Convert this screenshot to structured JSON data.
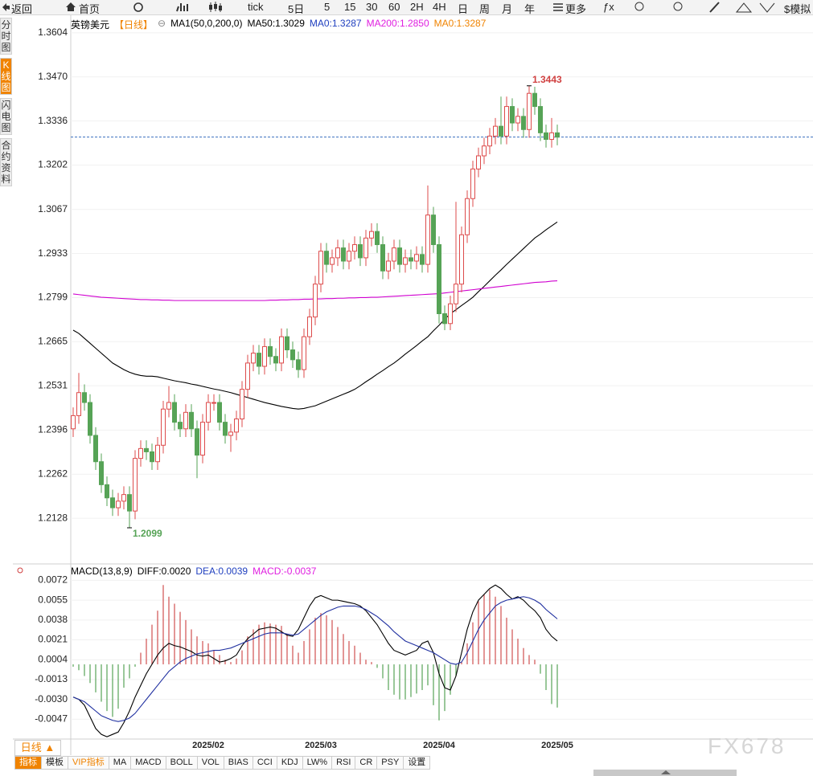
{
  "toolbar": {
    "items": [
      "返回",
      "首页",
      "tick",
      "5日",
      "5",
      "15",
      "30",
      "60",
      "2H",
      "4H",
      "日",
      "周",
      "月",
      "年",
      "更多",
      "ƒx",
      "$模拟"
    ]
  },
  "sidebar": {
    "tabs": [
      "分时图",
      "K线图",
      "闪电图",
      "合约资料"
    ],
    "active": 1
  },
  "bottom": {
    "period": "日线 ▲",
    "tabs": [
      "指标",
      "模板",
      "VIP指标",
      "MA",
      "MACD",
      "BOLL",
      "VOL",
      "BIAS",
      "CCI",
      "KDJ",
      "LW%",
      "RSI",
      "CR",
      "PSY",
      "设置"
    ]
  },
  "watermark": "FX678",
  "chart_data": [
    {
      "type": "candlestick",
      "title": "英镑美元",
      "legend": [
        {
          "text": "【日线】",
          "color": "#f08300"
        },
        {
          "text": "⊖",
          "color": "#888888"
        },
        {
          "text": "MA1(50,0,200,0)",
          "color": "#000000"
        },
        {
          "text": "MA50:1.3029",
          "color": "#000000"
        },
        {
          "text": "MA0:1.3287",
          "color": "#1f3fbf"
        },
        {
          "text": "MA200:1.2850",
          "color": "#e020e0"
        },
        {
          "text": "MA0:1.3287",
          "color": "#f08300"
        }
      ],
      "open": [
        1.24,
        1.244,
        1.251,
        1.248,
        1.238,
        1.23,
        1.223,
        1.219,
        1.216,
        1.218,
        1.22,
        1.215,
        1.231,
        1.234,
        1.233,
        1.23,
        1.235,
        1.246,
        1.248,
        1.242,
        1.24,
        1.245,
        1.24,
        1.232,
        1.242,
        1.248,
        1.248,
        1.242,
        1.238,
        1.239,
        1.243,
        1.252,
        1.26,
        1.263,
        1.259,
        1.265,
        1.262,
        1.26,
        1.268,
        1.264,
        1.261,
        1.258,
        1.268,
        1.274,
        1.284,
        1.294,
        1.29,
        1.292,
        1.295,
        1.291,
        1.294,
        1.296,
        1.292,
        1.298,
        1.3,
        1.296,
        1.288,
        1.291,
        1.295,
        1.29,
        1.292,
        1.291,
        1.293,
        1.29,
        1.305,
        1.296,
        1.275,
        1.272,
        1.278,
        1.284,
        1.299,
        1.31,
        1.319,
        1.323,
        1.326,
        1.329,
        1.332,
        1.329,
        1.338,
        1.333,
        1.335,
        1.331,
        1.342,
        1.338,
        1.33,
        1.328,
        1.33
      ],
      "high": [
        1.2465,
        1.257,
        1.2535,
        1.2505,
        1.2405,
        1.2325,
        1.2255,
        1.2215,
        1.2205,
        1.2225,
        1.2225,
        1.2335,
        1.2365,
        1.2365,
        1.2355,
        1.2375,
        1.2485,
        1.253,
        1.2505,
        1.2445,
        1.2475,
        1.2475,
        1.2425,
        1.2445,
        1.2505,
        1.2505,
        1.2505,
        1.2445,
        1.2415,
        1.2455,
        1.2545,
        1.2625,
        1.2655,
        1.2655,
        1.2675,
        1.2675,
        1.2645,
        1.2705,
        1.2705,
        1.2665,
        1.2635,
        1.2705,
        1.2765,
        1.2865,
        1.2965,
        1.2965,
        1.2945,
        1.2975,
        1.2975,
        1.2965,
        1.2985,
        1.2985,
        1.3005,
        1.3025,
        1.3025,
        1.2985,
        1.2935,
        1.2975,
        1.2975,
        1.2945,
        1.2945,
        1.2955,
        1.2955,
        1.314,
        1.3075,
        1.2985,
        1.2775,
        1.2805,
        1.309,
        1.3015,
        1.3125,
        1.3215,
        1.3255,
        1.3285,
        1.3315,
        1.3345,
        1.341,
        1.341,
        1.3405,
        1.3375,
        1.3375,
        1.3443,
        1.344,
        1.3405,
        1.3325,
        1.3345,
        1.3325
      ],
      "low": [
        1.2375,
        1.2415,
        1.2455,
        1.2355,
        1.2275,
        1.2205,
        1.2165,
        1.2135,
        1.2135,
        1.2155,
        1.2099,
        1.2125,
        1.2285,
        1.2305,
        1.2275,
        1.2275,
        1.2325,
        1.2435,
        1.2395,
        1.2375,
        1.2375,
        1.2375,
        1.225,
        1.2295,
        1.2395,
        1.2455,
        1.2395,
        1.2355,
        1.233,
        1.2365,
        1.2405,
        1.2495,
        1.2575,
        1.2565,
        1.2565,
        1.2595,
        1.2575,
        1.2575,
        1.2615,
        1.2585,
        1.2555,
        1.2555,
        1.2655,
        1.2715,
        1.2815,
        1.2875,
        1.2875,
        1.2895,
        1.2885,
        1.2885,
        1.2915,
        1.2895,
        1.2895,
        1.2955,
        1.2935,
        1.2855,
        1.2855,
        1.2885,
        1.2875,
        1.2875,
        1.2885,
        1.2885,
        1.2875,
        1.2875,
        1.2935,
        1.272,
        1.27,
        1.27,
        1.2755,
        1.2815,
        1.2965,
        1.3075,
        1.3165,
        1.3205,
        1.3235,
        1.3265,
        1.3265,
        1.3265,
        1.3305,
        1.3305,
        1.3285,
        1.3285,
        1.3355,
        1.3275,
        1.3255,
        1.3255,
        1.3262
      ],
      "close": [
        1.244,
        1.251,
        1.248,
        1.238,
        1.23,
        1.223,
        1.219,
        1.216,
        1.218,
        1.22,
        1.215,
        1.231,
        1.234,
        1.233,
        1.23,
        1.235,
        1.246,
        1.248,
        1.242,
        1.24,
        1.245,
        1.24,
        1.232,
        1.242,
        1.248,
        1.248,
        1.242,
        1.238,
        1.239,
        1.243,
        1.252,
        1.26,
        1.263,
        1.259,
        1.265,
        1.262,
        1.26,
        1.268,
        1.264,
        1.261,
        1.258,
        1.268,
        1.274,
        1.284,
        1.294,
        1.29,
        1.292,
        1.295,
        1.291,
        1.294,
        1.296,
        1.292,
        1.298,
        1.3,
        1.296,
        1.288,
        1.291,
        1.295,
        1.29,
        1.292,
        1.291,
        1.293,
        1.29,
        1.305,
        1.296,
        1.275,
        1.272,
        1.278,
        1.284,
        1.299,
        1.31,
        1.319,
        1.323,
        1.326,
        1.329,
        1.332,
        1.329,
        1.338,
        1.333,
        1.335,
        1.331,
        1.342,
        1.338,
        1.33,
        1.328,
        1.33,
        1.3287
      ],
      "up_color": "#dd4b4b",
      "down_color": "#56a356",
      "last_color": "#3a6fbf",
      "series": [
        {
          "color": "#000000",
          "values": [
            1.27,
            1.269,
            1.2675,
            1.266,
            1.2645,
            1.263,
            1.2615,
            1.26,
            1.259,
            1.258,
            1.2572,
            1.2566,
            1.2562,
            1.256,
            1.256,
            1.2558,
            1.2554,
            1.255,
            1.2546,
            1.2543,
            1.254,
            1.2536,
            1.2533,
            1.2529,
            1.2525,
            1.2521,
            1.2518,
            1.2514,
            1.251,
            1.2505,
            1.25,
            1.2495,
            1.249,
            1.2485,
            1.248,
            1.2476,
            1.2472,
            1.2468,
            1.2465,
            1.2462,
            1.246,
            1.2462,
            1.2466,
            1.247,
            1.2477,
            1.2484,
            1.2491,
            1.2498,
            1.2505,
            1.2512,
            1.252,
            1.2531,
            1.2543,
            1.2554,
            1.2566,
            1.2577,
            1.2589,
            1.26,
            1.2613,
            1.2627,
            1.264,
            1.2653,
            1.2667,
            1.268,
            1.2698,
            1.2715,
            1.2733,
            1.275,
            1.2762,
            1.2775,
            1.2787,
            1.28,
            1.2817,
            1.2833,
            1.285,
            1.2867,
            1.2883,
            1.29,
            1.2916,
            1.2932,
            1.2948,
            1.2964,
            1.298,
            1.2992,
            1.3005,
            1.3017,
            1.3029
          ]
        },
        {
          "color": "#d000d0",
          "values": [
            1.281,
            1.2808,
            1.2806,
            1.2804,
            1.2802,
            1.28,
            1.2799,
            1.2798,
            1.2797,
            1.2796,
            1.2795,
            1.2794,
            1.2793,
            1.2793,
            1.2792,
            1.2792,
            1.2791,
            1.2791,
            1.279,
            1.279,
            1.279,
            1.279,
            1.279,
            1.279,
            1.279,
            1.279,
            1.279,
            1.279,
            1.279,
            1.279,
            1.279,
            1.279,
            1.279,
            1.279,
            1.279,
            1.2791,
            1.2791,
            1.2792,
            1.2792,
            1.2793,
            1.2793,
            1.2794,
            1.2794,
            1.2795,
            1.2795,
            1.2796,
            1.2796,
            1.2797,
            1.2797,
            1.2798,
            1.2798,
            1.2799,
            1.2799,
            1.28,
            1.28,
            1.2801,
            1.2802,
            1.2803,
            1.2804,
            1.2805,
            1.2806,
            1.2807,
            1.2808,
            1.2809,
            1.281,
            1.2811,
            1.2813,
            1.2815,
            1.2817,
            1.2819,
            1.2821,
            1.2823,
            1.2825,
            1.2827,
            1.2829,
            1.2831,
            1.2833,
            1.2835,
            1.2837,
            1.2839,
            1.2841,
            1.2843,
            1.2845,
            1.2846,
            1.2847,
            1.2849,
            1.285
          ]
        }
      ],
      "ylim": [
        1.1994,
        1.3655
      ],
      "yticks": [
        1.3604,
        {
          "value": 1.347,
          "label": "1.3470"
        },
        1.3336,
        1.3202,
        1.3067,
        1.2933,
        1.2799,
        1.2665,
        1.2531,
        1.2396,
        1.2262,
        1.2128
      ],
      "grid": true
    },
    {
      "type": "macd",
      "title": "MACD(13,8,9)",
      "legend": [
        {
          "text": "DIFF:0.0020",
          "color": "#000000"
        },
        {
          "text": "DEA:0.0039",
          "color": "#1f3fbf"
        },
        {
          "text": "MACD:-0.0037",
          "color": "#e020e0"
        }
      ],
      "categories": [
        null,
        null,
        null,
        null,
        null,
        null,
        null,
        null,
        null,
        null,
        null,
        null,
        null,
        null,
        null,
        null,
        null,
        null,
        null,
        null,
        null,
        null,
        null,
        null,
        "2025/02",
        null,
        null,
        null,
        null,
        null,
        null,
        null,
        null,
        null,
        null,
        null,
        null,
        null,
        null,
        null,
        null,
        null,
        null,
        null,
        "2025/03",
        null,
        null,
        null,
        null,
        null,
        null,
        null,
        null,
        null,
        null,
        null,
        null,
        null,
        null,
        null,
        null,
        null,
        null,
        null,
        null,
        "2025/04",
        null,
        null,
        null,
        null,
        null,
        null,
        null,
        null,
        null,
        null,
        null,
        null,
        null,
        null,
        null,
        null,
        null,
        null,
        null,
        null,
        "2025/05"
      ],
      "values": [
        -0.0002,
        -0.0005,
        -0.001,
        -0.0016,
        -0.0024,
        -0.0032,
        -0.004,
        -0.0045,
        -0.0038,
        -0.002,
        -0.0012,
        -0.0002,
        0.001,
        0.0022,
        0.0034,
        0.0046,
        0.0068,
        0.0058,
        0.0052,
        0.0045,
        0.0038,
        0.003,
        0.0024,
        0.002,
        0.0018,
        0.0012,
        0.0008,
        0.0004,
        0.0002,
        0.0005,
        0.0012,
        0.0024,
        0.003,
        0.0034,
        0.0036,
        0.0035,
        0.0034,
        0.0033,
        0.0026,
        0.0016,
        0.001,
        0.002,
        0.003,
        0.004,
        0.0044,
        0.0042,
        0.0038,
        0.0032,
        0.0026,
        0.002,
        0.0016,
        0.001,
        0.0004,
        0.0002,
        -0.0003,
        -0.0012,
        -0.0022,
        -0.0026,
        -0.003,
        -0.003,
        -0.0028,
        -0.0025,
        -0.0022,
        -0.0018,
        -0.0035,
        -0.0048,
        -0.004,
        -0.0026,
        -0.001,
        0.0002,
        0.0018,
        0.0036,
        0.0054,
        0.006,
        0.0064,
        0.0058,
        0.005,
        0.004,
        0.003,
        0.0022,
        0.0014,
        0.0008,
        0.0004,
        -0.0008,
        -0.0022,
        -0.0034,
        -0.0037
      ],
      "up_color": "#d05050",
      "down_color": "#56a356",
      "series": [
        {
          "color": "#000000",
          "values": [
            -0.0028,
            -0.003,
            -0.0035,
            -0.0045,
            -0.0055,
            -0.006,
            -0.0062,
            -0.006,
            -0.0058,
            -0.005,
            -0.004,
            -0.0028,
            -0.0018,
            -0.0008,
            0.0,
            0.0008,
            0.0014,
            0.0018,
            0.0016,
            0.0015,
            0.0013,
            0.0011,
            0.0008,
            0.0007,
            0.0008,
            0.0005,
            0.0002,
            0.0003,
            0.0005,
            0.0008,
            0.0016,
            0.0022,
            0.0026,
            0.003,
            0.0031,
            0.0032,
            0.0031,
            0.0028,
            0.0025,
            0.0024,
            0.003,
            0.004,
            0.005,
            0.0057,
            0.0059,
            0.0057,
            0.0055,
            0.0055,
            0.0054,
            0.0053,
            0.0052,
            0.005,
            0.0046,
            0.004,
            0.0034,
            0.0026,
            0.0018,
            0.0012,
            0.001,
            0.0008,
            0.001,
            0.0012,
            0.0018,
            0.002,
            0.001,
            -0.0008,
            -0.002,
            -0.0022,
            -0.001,
            0.001,
            0.003,
            0.0045,
            0.0055,
            0.006,
            0.0065,
            0.0068,
            0.0065,
            0.006,
            0.0056,
            0.0058,
            0.0055,
            0.005,
            0.0046,
            0.004,
            0.003,
            0.0024,
            0.002
          ]
        },
        {
          "color": "#2030a0",
          "values": [
            -0.0028,
            -0.003,
            -0.0032,
            -0.0036,
            -0.004,
            -0.0044,
            -0.0046,
            -0.0048,
            -0.0049,
            -0.0048,
            -0.0046,
            -0.0042,
            -0.0036,
            -0.003,
            -0.0024,
            -0.0018,
            -0.0012,
            -0.0006,
            -0.0002,
            0.0002,
            0.0005,
            0.0007,
            0.0009,
            0.001,
            0.0011,
            0.0012,
            0.0012,
            0.0013,
            0.0014,
            0.0016,
            0.0018,
            0.002,
            0.0022,
            0.0024,
            0.0026,
            0.0027,
            0.0027,
            0.0027,
            0.0026,
            0.0025,
            0.0026,
            0.003,
            0.0034,
            0.0038,
            0.0042,
            0.0045,
            0.0047,
            0.0049,
            0.005,
            0.005,
            0.005,
            0.0049,
            0.0047,
            0.0044,
            0.0041,
            0.0037,
            0.0033,
            0.0028,
            0.0024,
            0.002,
            0.0018,
            0.0016,
            0.0014,
            0.0012,
            0.001,
            0.0007,
            0.0004,
            0.0001,
            0.0,
            0.0002,
            0.001,
            0.002,
            0.003,
            0.0038,
            0.0044,
            0.005,
            0.0053,
            0.0055,
            0.0056,
            0.0057,
            0.0058,
            0.0057,
            0.0055,
            0.0052,
            0.0047,
            0.0043,
            0.0039
          ]
        }
      ],
      "ylim": [
        -0.0064,
        0.0084
      ],
      "yticks": [
        0.0072,
        0.0055,
        0.0038,
        0.0021,
        0.0004,
        -0.0013,
        {
          "value": -0.003,
          "label": "-0.0030"
        },
        -0.0047
      ],
      "grid": true
    }
  ]
}
